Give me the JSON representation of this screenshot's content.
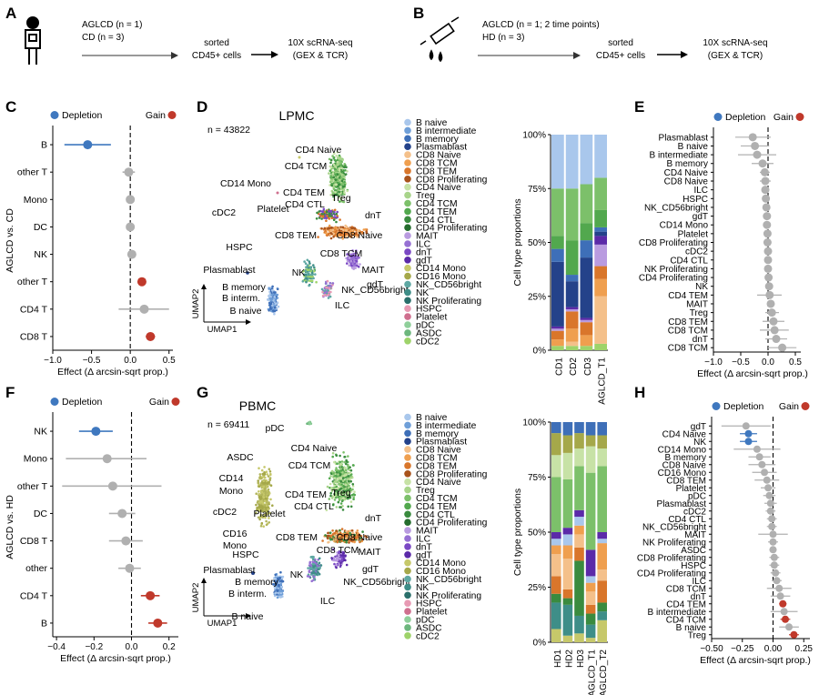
{
  "panel_letters": {
    "A": "A",
    "B": "B",
    "C": "C",
    "D": "D",
    "E": "E",
    "F": "F",
    "G": "G",
    "H": "H"
  },
  "workflow": {
    "a_line1": "AGLCD (n = 1)",
    "a_line2": "CD (n = 3)",
    "b_line1": "AGLCD (n = 1; 2 time points)",
    "b_line2": "HD (n = 3)",
    "sorted_1": "sorted",
    "sorted_2": "CD45+ cells",
    "seq_1": "10X scRNA-seq",
    "seq_2": "(GEX & TCR)"
  },
  "legend_text": {
    "depletion": "Depletion",
    "gain": "Gain"
  },
  "colors": {
    "depletion": "#3f78bf",
    "gain": "#c0392b",
    "neutral": "#b0b0b0"
  },
  "umap": {
    "lpmc_title": "LPMC",
    "lpmc_n": "n = 43822",
    "pbmc_title": "PBMC",
    "pbmc_n": "n = 69411",
    "axis_x": "UMAP1",
    "axis_y": "UMAP2",
    "lpmc_labels": [
      "CD4 Naive",
      "CD4 TCM",
      "Treg",
      "CD14 Mono",
      "CD4 TEM",
      "CD4 CTL",
      "cDC2",
      "Platelet",
      "dnT",
      "CD8 TEM",
      "CD8 Naive",
      "HSPC",
      "CD8 TCM",
      "MAIT",
      "Plasmablast",
      "NK",
      "gdT",
      "B memory",
      "NK_CD56bright",
      "B interm.",
      "ILC",
      "B naive"
    ],
    "pbmc_labels": [
      "pDC",
      "CD4 Naive",
      "ASDC",
      "CD4 TCM",
      "Treg",
      "CD14",
      "Mono",
      "CD4 TEM",
      "CD4 CTL",
      "cDC2",
      "Platelet",
      "dnT",
      "CD16",
      "Mono",
      "CD8 TEM",
      "CD8 Naive",
      "HSPC",
      "CD8 TCM",
      "MAIT",
      "Plasmablast",
      "NK",
      "gdT",
      "B memory",
      "NK_CD56bright",
      "B interm.",
      "ILC",
      "B naive"
    ]
  },
  "cell_types": [
    {
      "name": "B naive",
      "color": "#a9c7ec"
    },
    {
      "name": "B intermediate",
      "color": "#6f9fd8"
    },
    {
      "name": "B memory",
      "color": "#3e6fb8"
    },
    {
      "name": "Plasmablast",
      "color": "#24428a"
    },
    {
      "name": "CD8 Naive",
      "color": "#f4c08a"
    },
    {
      "name": "CD8 TCM",
      "color": "#ef9f4f"
    },
    {
      "name": "CD8 TEM",
      "color": "#d9762b"
    },
    {
      "name": "CD8 Proliferating",
      "color": "#a9531c"
    },
    {
      "name": "CD4 Naive",
      "color": "#c7e2a6"
    },
    {
      "name": "Treg",
      "color": "#a8d48a"
    },
    {
      "name": "CD4 TCM",
      "color": "#7cc06a"
    },
    {
      "name": "CD4 TEM",
      "color": "#52a84e"
    },
    {
      "name": "CD4 CTL",
      "color": "#3a8b3f"
    },
    {
      "name": "CD4 Proliferating",
      "color": "#256d2e"
    },
    {
      "name": "MAIT",
      "color": "#b99be0"
    },
    {
      "name": "ILC",
      "color": "#9670d3"
    },
    {
      "name": "dnT",
      "color": "#7a48c4"
    },
    {
      "name": "gdT",
      "color": "#5b2aa8"
    },
    {
      "name": "CD14 Mono",
      "color": "#c6c86a"
    },
    {
      "name": "CD16 Mono",
      "color": "#a5a84a"
    },
    {
      "name": "NK_CD56bright",
      "color": "#5fa8a3"
    },
    {
      "name": "NK",
      "color": "#3e8e88"
    },
    {
      "name": "NK Proliferating",
      "color": "#2a6f6b"
    },
    {
      "name": "HSPC",
      "color": "#e79ab3"
    },
    {
      "name": "Platelet",
      "color": "#cf6f8e"
    },
    {
      "name": "pDC",
      "color": "#8fcf9a"
    },
    {
      "name": "ASDC",
      "color": "#6db67d"
    },
    {
      "name": "cDC2",
      "color": "#9ed36a"
    }
  ],
  "chart_data": [
    {
      "id": "C",
      "type": "scatter",
      "subtype": "forest",
      "ylabel": "AGLCD vs. CD",
      "xlabel": "Effect (Δ arcsin-sqrt prop.)",
      "xlim": [
        -1.0,
        0.55
      ],
      "xticks": [
        -1.0,
        -0.5,
        0.0,
        0.5
      ],
      "xtick_labels": [
        "−1.0",
        "−0.5",
        "0.0",
        "0.5"
      ],
      "categories": [
        "B",
        "other T",
        "Mono",
        "DC",
        "NK",
        "other T",
        "CD4 T",
        "CD8 T"
      ],
      "effect": [
        -0.55,
        -0.02,
        0.0,
        0.0,
        0.02,
        0.15,
        0.18,
        0.26
      ],
      "ci_low": [
        -0.85,
        -0.1,
        -0.02,
        -0.02,
        -0.01,
        0.1,
        -0.15,
        0.2
      ],
      "ci_high": [
        -0.25,
        0.06,
        0.02,
        0.02,
        0.05,
        0.2,
        0.5,
        0.32
      ],
      "status": [
        "depletion",
        "neutral",
        "neutral",
        "neutral",
        "neutral",
        "gain",
        "neutral",
        "gain"
      ]
    },
    {
      "id": "F",
      "type": "scatter",
      "subtype": "forest",
      "ylabel": "AGLCD vs. HD",
      "xlabel": "Effect (Δ arcsin-sqrt prop.)",
      "xlim": [
        -0.42,
        0.25
      ],
      "xticks": [
        -0.4,
        -0.2,
        0.0,
        0.2
      ],
      "xtick_labels": [
        "−0.4",
        "−0.2",
        "0.0",
        "0.2"
      ],
      "categories": [
        "NK",
        "Mono",
        "other T",
        "DC",
        "CD8 T",
        "other",
        "CD4 T",
        "B"
      ],
      "effect": [
        -0.19,
        -0.13,
        -0.1,
        -0.05,
        -0.03,
        -0.01,
        0.1,
        0.14
      ],
      "ci_low": [
        -0.28,
        -0.35,
        -0.37,
        -0.12,
        -0.12,
        -0.07,
        0.05,
        0.09
      ],
      "ci_high": [
        -0.1,
        0.08,
        0.16,
        0.02,
        0.06,
        0.05,
        0.15,
        0.19
      ],
      "status": [
        "depletion",
        "neutral",
        "neutral",
        "neutral",
        "neutral",
        "neutral",
        "gain",
        "gain"
      ]
    },
    {
      "id": "E",
      "type": "scatter",
      "subtype": "forest",
      "xlabel": "Effect (Δ arcsin-sqrt prop.)",
      "xlim": [
        -1.0,
        0.6
      ],
      "xticks": [
        -1.0,
        -0.5,
        0.0,
        0.5
      ],
      "xtick_labels": [
        "−1.0",
        "−0.5",
        "0.0",
        "0.5"
      ],
      "categories": [
        "Plasmablast",
        "B naive",
        "B intermediate",
        "B memory",
        "CD4 Naive",
        "CD8 Naive",
        "ILC",
        "HSPC",
        "NK_CD56bright",
        "gdT",
        "CD14 Mono",
        "Platelet",
        "CD8 Proliferating",
        "cDC2",
        "CD4 CTL",
        "NK Proliferating",
        "CD4 Proliferating",
        "NK",
        "CD4 TEM",
        "MAIT",
        "Treg",
        "CD8 TEM",
        "CD8 TCM",
        "dnT",
        "CD8 TCM"
      ],
      "effect": [
        -0.28,
        -0.24,
        -0.2,
        -0.1,
        -0.06,
        -0.05,
        -0.05,
        -0.04,
        -0.03,
        -0.02,
        -0.02,
        -0.01,
        -0.01,
        0.0,
        0.0,
        0.0,
        0.01,
        0.02,
        0.03,
        0.05,
        0.07,
        0.1,
        0.12,
        0.15,
        0.26
      ],
      "ci_low": [
        -0.6,
        -0.5,
        -0.55,
        -0.3,
        -0.15,
        -0.15,
        -0.12,
        -0.1,
        -0.08,
        -0.07,
        -0.07,
        -0.05,
        -0.05,
        -0.04,
        -0.05,
        -0.04,
        -0.03,
        -0.05,
        -0.2,
        -0.02,
        -0.05,
        -0.1,
        -0.15,
        -0.05,
        0.0
      ],
      "ci_high": [
        0.05,
        0.02,
        0.15,
        0.1,
        0.03,
        0.05,
        0.02,
        0.02,
        0.02,
        0.03,
        0.03,
        0.03,
        0.03,
        0.04,
        0.05,
        0.04,
        0.05,
        0.09,
        0.25,
        0.12,
        0.2,
        0.3,
        0.38,
        0.35,
        0.52
      ],
      "status": "all-neutral"
    },
    {
      "id": "H",
      "type": "scatter",
      "subtype": "forest",
      "xlabel": "Effect (Δ arcsin-sqrt prop.)",
      "xlim": [
        -0.5,
        0.3
      ],
      "xticks": [
        -0.5,
        -0.25,
        0.0,
        0.25
      ],
      "xtick_labels": [
        "−0.50",
        "−0.25",
        "0.00",
        "0.25"
      ],
      "categories": [
        "gdT",
        "CD4 Naive",
        "NK",
        "CD14 Mono",
        "B memory",
        "CD8 Naive",
        "CD16 Mono",
        "CD8 TEM",
        "Platelet",
        "pDC",
        "Plasmablast",
        "cDC2",
        "CD4 CTL",
        "NK_CD56bright",
        "MAIT",
        "NK Proliferating",
        "ASDC",
        "CD8 Proliferating",
        "HSPC",
        "CD4 Proliferating",
        "ILC",
        "CD8 TCM",
        "dnT",
        "CD4 TEM",
        "B intermediate",
        "CD4 TCM",
        "B naive",
        "Treg"
      ],
      "effect": [
        -0.22,
        -0.2,
        -0.2,
        -0.13,
        -0.11,
        -0.09,
        -0.07,
        -0.05,
        -0.04,
        -0.03,
        -0.02,
        -0.02,
        -0.01,
        -0.01,
        0.0,
        0.0,
        0.0,
        0.01,
        0.01,
        0.02,
        0.03,
        0.05,
        0.06,
        0.08,
        0.09,
        0.1,
        0.13,
        0.17
      ],
      "ci_low": [
        -0.42,
        -0.27,
        -0.27,
        -0.32,
        -0.2,
        -0.2,
        -0.17,
        -0.15,
        -0.1,
        -0.08,
        -0.07,
        -0.06,
        -0.05,
        -0.05,
        -0.12,
        -0.04,
        -0.03,
        -0.03,
        -0.03,
        -0.02,
        -0.01,
        -0.05,
        -0.02,
        0.05,
        -0.02,
        0.06,
        0.05,
        0.13
      ],
      "ci_high": [
        -0.02,
        -0.13,
        -0.13,
        0.06,
        -0.02,
        0.02,
        0.03,
        0.05,
        0.02,
        0.02,
        0.03,
        0.02,
        0.03,
        0.03,
        0.12,
        0.04,
        0.03,
        0.05,
        0.05,
        0.06,
        0.07,
        0.15,
        0.14,
        0.11,
        0.2,
        0.14,
        0.21,
        0.21
      ],
      "status": [
        "neutral",
        "depletion",
        "depletion",
        "neutral",
        "neutral",
        "neutral",
        "neutral",
        "neutral",
        "neutral",
        "neutral",
        "neutral",
        "neutral",
        "neutral",
        "neutral",
        "neutral",
        "neutral",
        "neutral",
        "neutral",
        "neutral",
        "neutral",
        "neutral",
        "neutral",
        "neutral",
        "gain",
        "neutral",
        "gain",
        "neutral",
        "gain"
      ]
    },
    {
      "id": "D-bars",
      "type": "bar",
      "subtype": "stacked",
      "ylabel": "Cell type proportions",
      "ylim": [
        0,
        100
      ],
      "yticks": [
        "0%",
        "25%",
        "50%",
        "75%",
        "100%"
      ],
      "categories": [
        "CD1",
        "CD2",
        "CD3",
        "AGLCD_T1"
      ],
      "series_order": [
        "cDC2",
        "CD8 Naive",
        "CD8 TCM",
        "CD8 TEM",
        "MAIT",
        "gdT",
        "Plasmablast",
        "B memory",
        "CD4 TEM",
        "CD4 TCM",
        "B naive",
        "Treg"
      ],
      "values": {
        "cDC2": [
          2,
          2,
          2,
          3
        ],
        "CD8 Naive": [
          0,
          2,
          0,
          22
        ],
        "CD8 TCM": [
          3,
          6,
          5,
          8
        ],
        "CD8 TEM": [
          4,
          8,
          6,
          6
        ],
        "MAIT": [
          1,
          1,
          1,
          10
        ],
        "gdT": [
          1,
          1,
          1,
          4
        ],
        "Plasmablast": [
          30,
          12,
          28,
          2
        ],
        "B memory": [
          6,
          3,
          8,
          2
        ],
        "CD4 TEM": [
          6,
          16,
          8,
          8
        ],
        "CD4 TCM": [
          22,
          24,
          18,
          15
        ],
        "B naive": [
          25,
          25,
          23,
          20
        ],
        "Treg": [
          0,
          0,
          0,
          0
        ]
      }
    },
    {
      "id": "G-bars",
      "type": "bar",
      "subtype": "stacked",
      "ylabel": "Cell type proportions",
      "ylim": [
        0,
        100
      ],
      "yticks": [
        "0%",
        "25%",
        "50%",
        "75%",
        "100%"
      ],
      "categories": [
        "HD1",
        "HD2",
        "HD3",
        "AGLCD_T1",
        "AGLCD_T2"
      ],
      "series_order": [
        "CD14 Mono",
        "NK",
        "CD4 CTL",
        "CD8 TEM",
        "CD8 Naive",
        "CD8 TCM",
        "B naive",
        "gdT",
        "CD4 TCM",
        "CD4 Naive",
        "CD16 Mono",
        "B memory"
      ],
      "values": {
        "CD14 Mono": [
          6,
          3,
          4,
          2,
          10
        ],
        "NK": [
          12,
          14,
          8,
          6,
          4
        ],
        "CD4 CTL": [
          4,
          3,
          25,
          5,
          4
        ],
        "CD8 TEM": [
          8,
          4,
          6,
          4,
          10
        ],
        "CD8 Naive": [
          10,
          14,
          6,
          6,
          5
        ],
        "CD8 TCM": [
          4,
          6,
          4,
          4,
          12
        ],
        "B naive": [
          3,
          5,
          4,
          3,
          2
        ],
        "gdT": [
          3,
          3,
          3,
          12,
          3
        ],
        "CD4 TCM": [
          25,
          22,
          20,
          35,
          30
        ],
        "CD4 Naive": [
          10,
          12,
          8,
          12,
          8
        ],
        "CD16 Mono": [
          10,
          8,
          7,
          5,
          6
        ],
        "B memory": [
          5,
          6,
          5,
          6,
          6
        ]
      }
    }
  ]
}
